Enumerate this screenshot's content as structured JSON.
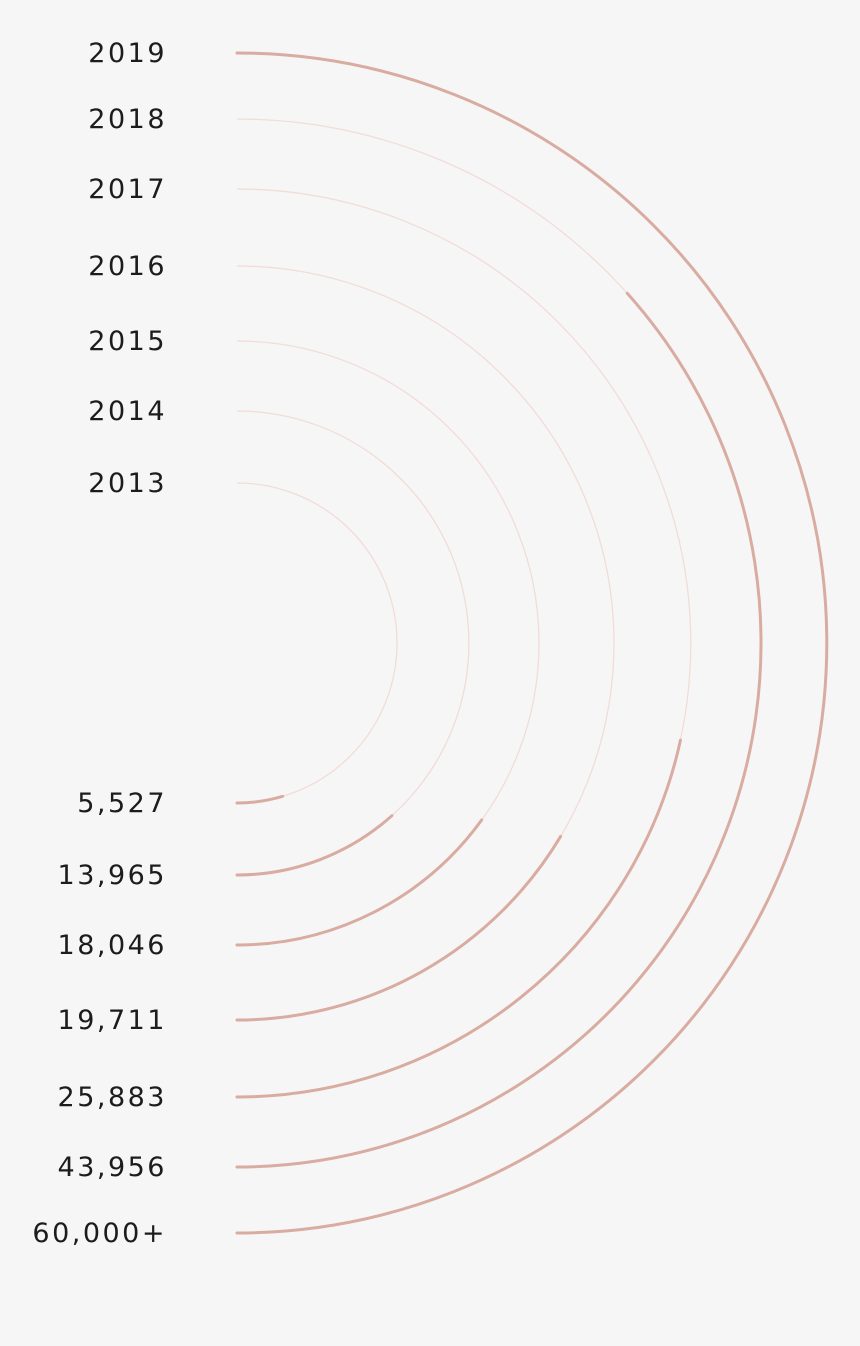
{
  "chart_data": {
    "type": "radial-bar",
    "title": "",
    "max_value": 60000,
    "colors": {
      "progress": "#d9aca1",
      "track": "#f1dcd8",
      "text": "#1c1c1c",
      "background": "#f7f6f6"
    },
    "rings": [
      {
        "year": "2013",
        "value": 5527,
        "value_label": "5,527"
      },
      {
        "year": "2014",
        "value": 13965,
        "value_label": "13,965"
      },
      {
        "year": "2015",
        "value": 18046,
        "value_label": "18,046"
      },
      {
        "year": "2016",
        "value": 19711,
        "value_label": "19,711"
      },
      {
        "year": "2017",
        "value": 25883,
        "value_label": "25,883"
      },
      {
        "year": "2018",
        "value": 43956,
        "value_label": "43,956"
      },
      {
        "year": "2019",
        "value": 60000,
        "value_label": "60,000+"
      }
    ]
  }
}
